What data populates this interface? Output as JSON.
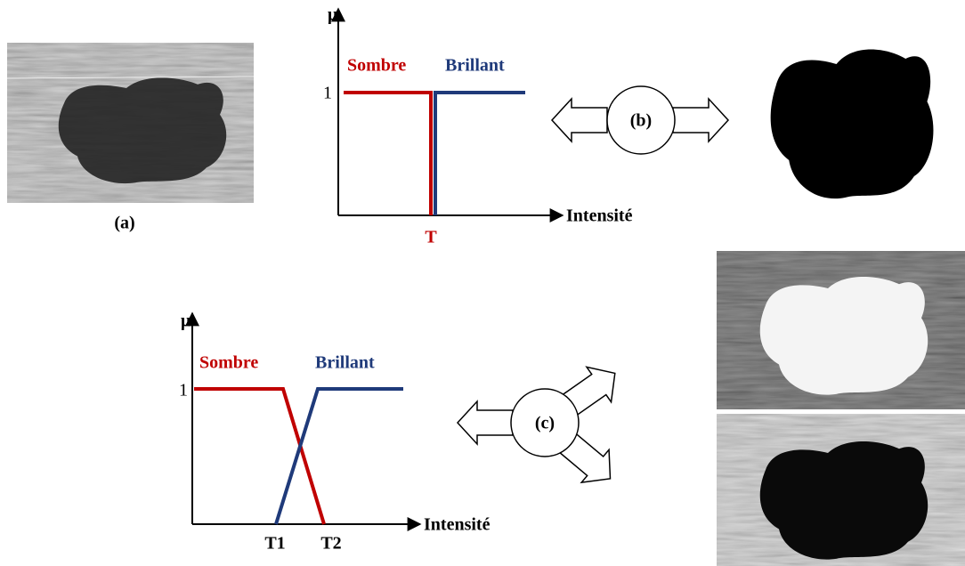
{
  "figure_a": {
    "label": "(a)"
  },
  "chart_b": {
    "y_label": "μ",
    "x_label": "Intensité",
    "y_tick": "1",
    "dark": "Sombre",
    "bright": "Brillant",
    "threshold": "T"
  },
  "arrow_b": {
    "label": "(b)"
  },
  "chart_c": {
    "y_label": "μ",
    "x_label": "Intensité",
    "y_tick": "1",
    "dark": "Sombre",
    "bright": "Brillant",
    "thresholds": [
      "T1",
      "T2"
    ]
  },
  "arrow_c": {
    "label": "(c)"
  }
}
